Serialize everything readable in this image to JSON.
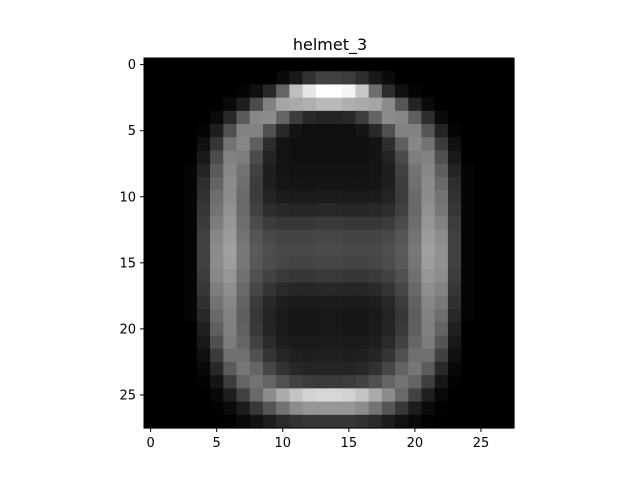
{
  "chart_data": {
    "type": "heatmap",
    "title": "helmet_3",
    "xlabel": "",
    "ylabel": "",
    "colormap": "gray",
    "value_range": [
      0,
      255
    ],
    "xlim": [
      -0.5,
      27.5
    ],
    "ylim": [
      27.5,
      -0.5
    ],
    "x_ticks": [
      0,
      5,
      10,
      15,
      20,
      25
    ],
    "y_ticks": [
      0,
      5,
      10,
      15,
      20,
      25
    ],
    "grid": false,
    "legend": "none",
    "shape": [
      28,
      28
    ],
    "note_values": "approximate pixel intensities read from the image",
    "values": [
      [
        0,
        0,
        0,
        0,
        0,
        0,
        0,
        0,
        0,
        0,
        0,
        0,
        0,
        0,
        0,
        0,
        0,
        0,
        0,
        0,
        0,
        0,
        0,
        0,
        0,
        0,
        0,
        0
      ],
      [
        0,
        0,
        0,
        0,
        0,
        0,
        0,
        0,
        0,
        0,
        10,
        25,
        50,
        65,
        65,
        60,
        45,
        25,
        10,
        0,
        0,
        0,
        0,
        0,
        0,
        0,
        0,
        0
      ],
      [
        0,
        0,
        0,
        0,
        0,
        0,
        0,
        5,
        15,
        40,
        100,
        190,
        230,
        255,
        255,
        245,
        200,
        110,
        45,
        15,
        5,
        0,
        0,
        0,
        0,
        0,
        0,
        0
      ],
      [
        0,
        0,
        0,
        0,
        0,
        0,
        10,
        30,
        75,
        130,
        165,
        170,
        175,
        185,
        185,
        175,
        170,
        165,
        140,
        85,
        35,
        10,
        0,
        0,
        0,
        0,
        0,
        0
      ],
      [
        0,
        0,
        0,
        0,
        0,
        10,
        40,
        90,
        135,
        140,
        100,
        60,
        40,
        35,
        35,
        40,
        60,
        100,
        140,
        135,
        95,
        45,
        10,
        0,
        0,
        0,
        0,
        0
      ],
      [
        0,
        0,
        0,
        0,
        5,
        30,
        80,
        130,
        130,
        80,
        40,
        20,
        15,
        15,
        15,
        15,
        20,
        40,
        80,
        130,
        130,
        85,
        35,
        5,
        0,
        0,
        0,
        0
      ],
      [
        0,
        0,
        0,
        0,
        15,
        55,
        115,
        135,
        95,
        45,
        20,
        15,
        15,
        15,
        15,
        15,
        15,
        20,
        45,
        95,
        135,
        115,
        60,
        15,
        0,
        0,
        0,
        0
      ],
      [
        0,
        0,
        0,
        0,
        25,
        75,
        130,
        125,
        75,
        35,
        20,
        15,
        15,
        15,
        15,
        15,
        15,
        20,
        35,
        75,
        125,
        130,
        80,
        25,
        0,
        0,
        0,
        0
      ],
      [
        0,
        0,
        0,
        5,
        35,
        90,
        135,
        115,
        65,
        30,
        20,
        18,
        18,
        18,
        18,
        18,
        18,
        20,
        30,
        65,
        115,
        135,
        95,
        35,
        5,
        0,
        0,
        0
      ],
      [
        0,
        0,
        0,
        5,
        45,
        100,
        140,
        110,
        60,
        30,
        22,
        20,
        20,
        22,
        22,
        20,
        20,
        22,
        30,
        60,
        110,
        140,
        105,
        45,
        5,
        0,
        0,
        0
      ],
      [
        0,
        0,
        0,
        5,
        50,
        110,
        140,
        105,
        60,
        35,
        28,
        26,
        26,
        28,
        28,
        26,
        26,
        28,
        35,
        60,
        105,
        140,
        115,
        50,
        5,
        0,
        0,
        0
      ],
      [
        0,
        0,
        0,
        5,
        55,
        115,
        145,
        105,
        65,
        45,
        40,
        38,
        38,
        40,
        40,
        38,
        38,
        40,
        45,
        65,
        105,
        145,
        120,
        55,
        5,
        0,
        0,
        0
      ],
      [
        0,
        0,
        0,
        5,
        60,
        125,
        150,
        110,
        75,
        60,
        55,
        55,
        55,
        58,
        58,
        55,
        55,
        55,
        60,
        75,
        110,
        150,
        130,
        60,
        5,
        0,
        0,
        0
      ],
      [
        0,
        0,
        0,
        5,
        65,
        135,
        155,
        115,
        85,
        72,
        68,
        68,
        68,
        70,
        70,
        68,
        68,
        68,
        72,
        85,
        115,
        155,
        140,
        65,
        5,
        0,
        0,
        0
      ],
      [
        0,
        0,
        0,
        5,
        65,
        140,
        160,
        120,
        90,
        78,
        72,
        72,
        72,
        75,
        75,
        72,
        72,
        72,
        78,
        90,
        120,
        160,
        145,
        65,
        5,
        0,
        0,
        0
      ],
      [
        0,
        0,
        0,
        5,
        65,
        140,
        158,
        118,
        88,
        76,
        70,
        68,
        68,
        70,
        70,
        68,
        68,
        70,
        76,
        88,
        118,
        158,
        145,
        65,
        5,
        0,
        0,
        0
      ],
      [
        0,
        0,
        0,
        5,
        60,
        135,
        150,
        112,
        80,
        66,
        58,
        55,
        55,
        58,
        58,
        55,
        55,
        58,
        66,
        80,
        112,
        150,
        140,
        60,
        5,
        0,
        0,
        0
      ],
      [
        0,
        0,
        0,
        5,
        55,
        125,
        142,
        105,
        70,
        52,
        42,
        38,
        38,
        40,
        40,
        38,
        38,
        42,
        52,
        70,
        105,
        142,
        130,
        55,
        5,
        0,
        0,
        0
      ],
      [
        0,
        0,
        0,
        5,
        48,
        115,
        135,
        98,
        60,
        40,
        30,
        26,
        26,
        28,
        28,
        26,
        26,
        30,
        40,
        60,
        98,
        135,
        120,
        48,
        5,
        0,
        0,
        0
      ],
      [
        0,
        0,
        0,
        5,
        40,
        105,
        130,
        95,
        55,
        35,
        26,
        22,
        22,
        24,
        24,
        22,
        22,
        26,
        35,
        55,
        95,
        130,
        110,
        40,
        5,
        0,
        0,
        0
      ],
      [
        0,
        0,
        0,
        0,
        32,
        95,
        128,
        96,
        58,
        36,
        26,
        22,
        22,
        24,
        24,
        22,
        22,
        26,
        36,
        58,
        96,
        128,
        100,
        32,
        0,
        0,
        0,
        0
      ],
      [
        0,
        0,
        0,
        0,
        24,
        80,
        124,
        102,
        66,
        42,
        30,
        26,
        26,
        28,
        28,
        26,
        26,
        30,
        42,
        66,
        102,
        124,
        85,
        24,
        0,
        0,
        0,
        0
      ],
      [
        0,
        0,
        0,
        0,
        15,
        60,
        112,
        112,
        80,
        52,
        38,
        32,
        30,
        32,
        32,
        30,
        32,
        38,
        52,
        80,
        112,
        112,
        65,
        15,
        0,
        0,
        0,
        0
      ],
      [
        0,
        0,
        0,
        0,
        8,
        40,
        90,
        118,
        100,
        70,
        50,
        40,
        36,
        36,
        36,
        36,
        40,
        50,
        70,
        100,
        118,
        92,
        42,
        8,
        0,
        0,
        0,
        0
      ],
      [
        0,
        0,
        0,
        0,
        3,
        20,
        60,
        100,
        115,
        100,
        80,
        66,
        60,
        58,
        58,
        60,
        66,
        80,
        100,
        115,
        100,
        62,
        22,
        3,
        0,
        0,
        0,
        0
      ],
      [
        0,
        0,
        0,
        0,
        0,
        8,
        30,
        65,
        105,
        140,
        170,
        195,
        210,
        215,
        215,
        210,
        195,
        170,
        140,
        105,
        66,
        32,
        8,
        0,
        0,
        0,
        0,
        0
      ],
      [
        0,
        0,
        0,
        0,
        0,
        2,
        10,
        28,
        55,
        85,
        115,
        140,
        150,
        150,
        150,
        150,
        140,
        115,
        85,
        55,
        28,
        10,
        2,
        0,
        0,
        0,
        0,
        0
      ],
      [
        0,
        0,
        0,
        0,
        0,
        0,
        2,
        8,
        18,
        30,
        42,
        50,
        55,
        55,
        55,
        55,
        50,
        42,
        30,
        18,
        8,
        2,
        0,
        0,
        0,
        0,
        0,
        0
      ]
    ]
  }
}
